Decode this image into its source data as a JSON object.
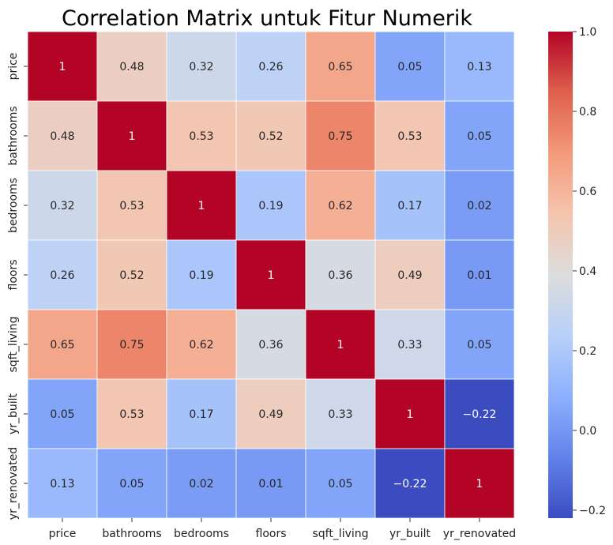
{
  "chart_data": {
    "type": "heatmap",
    "title": "Correlation Matrix untuk Fitur Numerik",
    "xlabel": "",
    "ylabel": "",
    "categories": [
      "price",
      "bathrooms",
      "bedrooms",
      "floors",
      "sqft_living",
      "yr_built",
      "yr_renovated"
    ],
    "values": [
      [
        1,
        0.48,
        0.32,
        0.26,
        0.65,
        0.05,
        0.13
      ],
      [
        0.48,
        1,
        0.53,
        0.52,
        0.75,
        0.53,
        0.05
      ],
      [
        0.32,
        0.53,
        1,
        0.19,
        0.62,
        0.17,
        0.02
      ],
      [
        0.26,
        0.52,
        0.19,
        1,
        0.36,
        0.49,
        0.01
      ],
      [
        0.65,
        0.75,
        0.62,
        0.36,
        1,
        0.33,
        0.05
      ],
      [
        0.05,
        0.53,
        0.17,
        0.49,
        0.33,
        1,
        -0.22
      ],
      [
        0.13,
        0.05,
        0.02,
        0.01,
        0.05,
        -0.22,
        1
      ]
    ],
    "colormap": "coolwarm",
    "colorbar": {
      "range": [
        -0.22,
        1.0
      ],
      "ticks": [
        -0.2,
        0.0,
        0.2,
        0.4,
        0.6,
        0.8,
        1.0
      ],
      "tick_labels": [
        "−0.2",
        "0.0",
        "0.2",
        "0.4",
        "0.6",
        "0.8",
        "1.0"
      ]
    },
    "annotations": true,
    "grid": false,
    "legend": "colorbar-right"
  }
}
